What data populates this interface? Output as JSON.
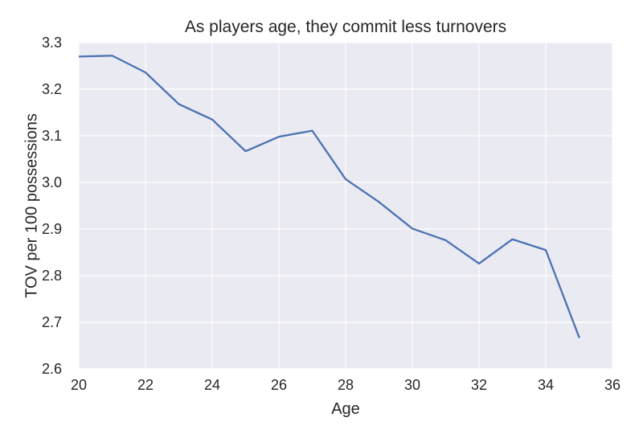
{
  "chart_data": {
    "type": "line",
    "title": "As players age, they commit less turnovers",
    "xlabel": "Age",
    "ylabel": "TOV per 100 possessions",
    "x": [
      20,
      21,
      22,
      23,
      24,
      25,
      26,
      27,
      28,
      29,
      30,
      31,
      32,
      33,
      34,
      35
    ],
    "series": [
      {
        "name": "TOV per 100 possessions",
        "values": [
          3.27,
          3.272,
          3.236,
          3.168,
          3.135,
          3.067,
          3.098,
          3.111,
          3.007,
          2.958,
          2.901,
          2.876,
          2.826,
          2.878,
          2.855,
          2.668
        ]
      }
    ],
    "xlim": [
      20,
      36
    ],
    "ylim": [
      2.6,
      3.3
    ],
    "xticks": [
      20,
      22,
      24,
      26,
      28,
      30,
      32,
      34,
      36
    ],
    "yticks": [
      2.6,
      2.7,
      2.8,
      2.9,
      3.0,
      3.1,
      3.2,
      3.3
    ],
    "grid": true,
    "legend": false,
    "colors": {
      "line": "#4c72b0",
      "plot_bg": "#eaeaf2",
      "grid": "#ffffff",
      "text": "#262626",
      "figure_bg": "#ffffff"
    }
  }
}
